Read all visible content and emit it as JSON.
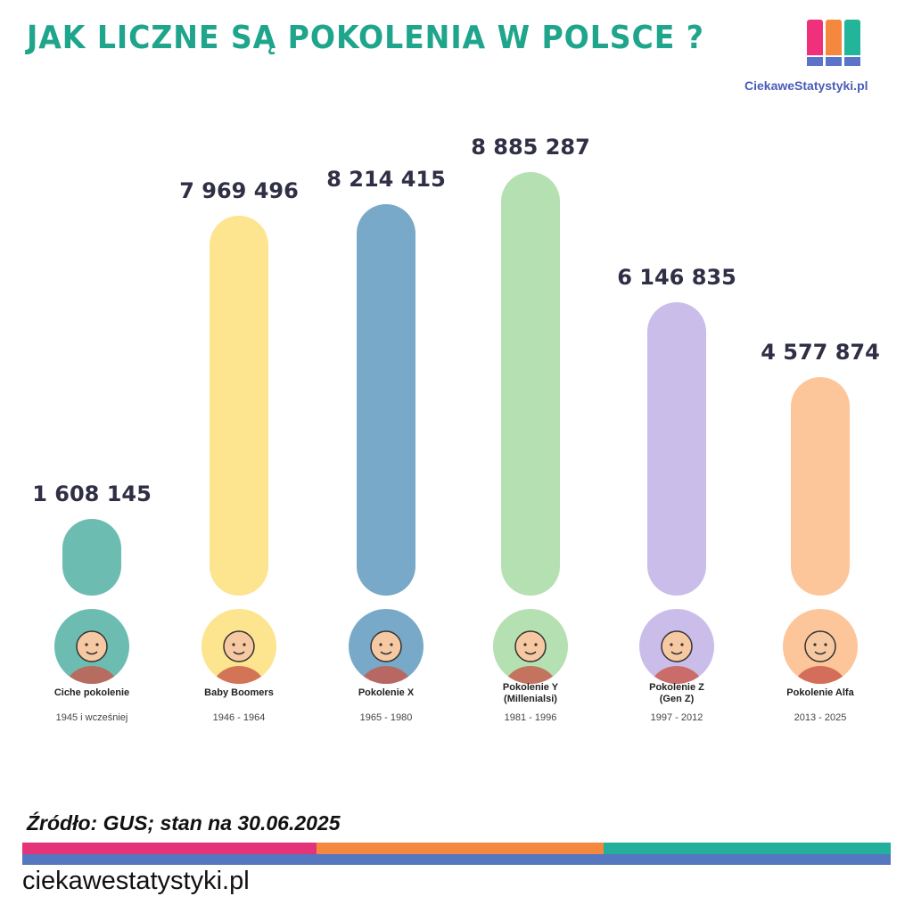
{
  "header": {
    "title": "JAK LICZNE SĄ POKOLENIA W POLSCE ?",
    "logo_text": "CiekaweStatystyki.pl"
  },
  "chart_data": {
    "type": "bar",
    "title": "JAK LICZNE SĄ POKOLENIA W POLSCE ?",
    "categories": [
      "Ciche pokolenie",
      "Baby Boomers",
      "Pokolenie X",
      "Pokolenie Y (Millenialsi)",
      "Pokolenie Z (Gen Z)",
      "Pokolenie Alfa"
    ],
    "values": [
      1608145,
      7969496,
      8214415,
      8885287,
      6146835,
      4577874
    ],
    "value_labels": [
      "1 608 145",
      "7 969 496",
      "8 214 415",
      "8 885 287",
      "6 146 835",
      "4 577 874"
    ],
    "years": [
      "1945 i wcześniej",
      "1946 - 1964",
      "1965 - 1980",
      "1981 - 1996",
      "1997 - 2012",
      "2013 - 2025"
    ],
    "name_lines": [
      [
        "Ciche pokolenie"
      ],
      [
        "Baby Boomers"
      ],
      [
        "Pokolenie X"
      ],
      [
        "Pokolenie Y",
        "(Millenialsi)"
      ],
      [
        "Pokolenie Z",
        "(Gen Z)"
      ],
      [
        "Pokolenie Alfa"
      ]
    ],
    "colors": [
      "#6dbcb2",
      "#fde48e",
      "#78a9c8",
      "#b5e0b2",
      "#cbbdea",
      "#fdc59a"
    ],
    "axes_shown": false,
    "grid": false
  },
  "footer": {
    "source": "Źródło: GUS; stan na 30.06.2025",
    "url": "ciekawestatystyki.pl",
    "stripe_colors": [
      "#e5337a",
      "#f5883f",
      "#22b09c",
      "#5577bf"
    ]
  }
}
